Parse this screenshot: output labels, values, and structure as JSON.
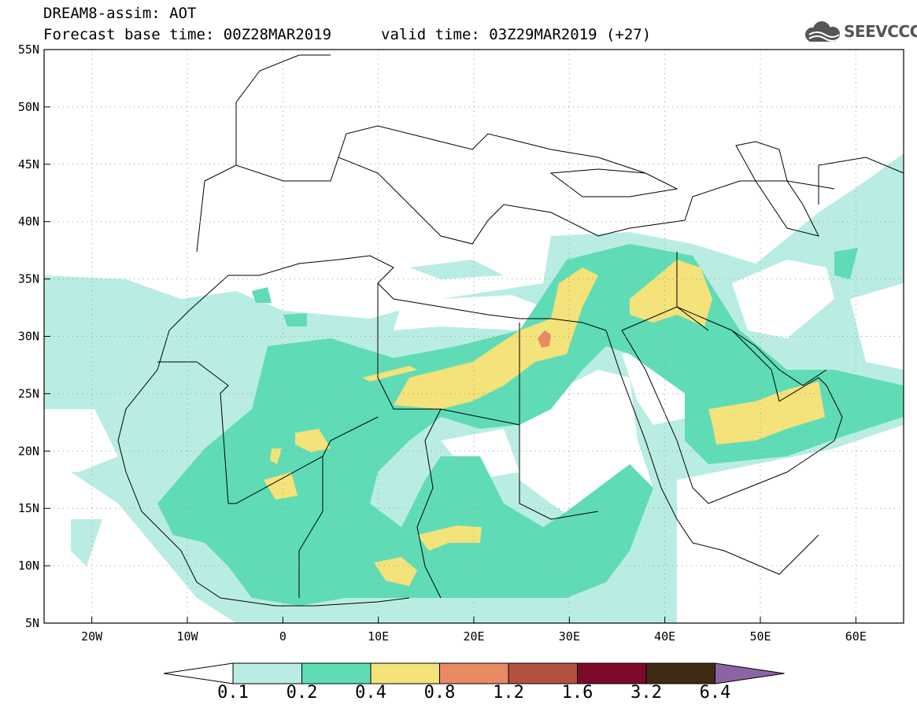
{
  "header": {
    "title": "DREAM8-assim: AOT",
    "base_time": "Forecast base time: 00Z28MAR2019",
    "valid_time": "valid time: 03Z29MAR2019 (+27)",
    "logo_text": "SEEVCCC"
  },
  "map": {
    "variable": "AOT",
    "lat_range": [
      5,
      55
    ],
    "lon_range": [
      -25,
      65
    ],
    "lat_ticks": [
      "55N",
      "50N",
      "45N",
      "40N",
      "35N",
      "30N",
      "25N",
      "20N",
      "15N",
      "10N",
      "5N"
    ],
    "lon_ticks": [
      "20W",
      "10W",
      "0",
      "10E",
      "20E",
      "30E",
      "40E",
      "50E",
      "60E"
    ]
  },
  "colorbar": {
    "labels": [
      "0.1",
      "0.2",
      "0.4",
      "0.8",
      "1.2",
      "1.6",
      "3.2",
      "6.4"
    ],
    "colors": [
      "#ffffff",
      "#b9ede3",
      "#5fdcb5",
      "#f4e27a",
      "#e88a63",
      "#b3513f",
      "#7d0a2b",
      "#3f2a14",
      "#8c64a6"
    ]
  }
}
